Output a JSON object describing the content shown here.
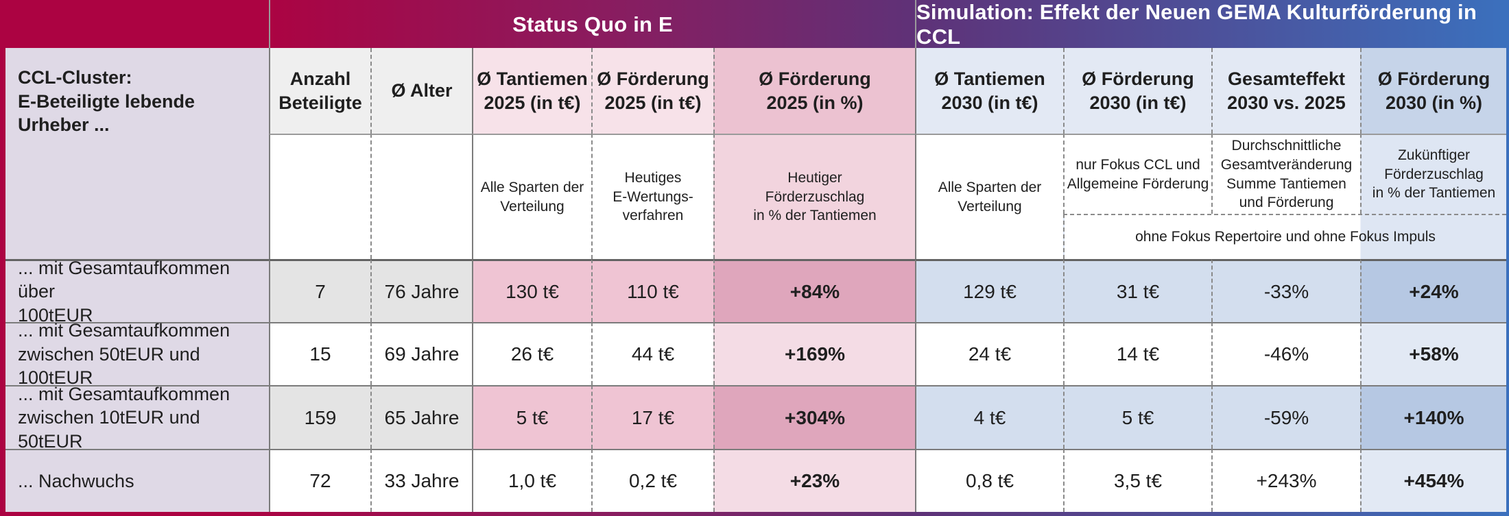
{
  "band": {
    "status_quo_title": "Status Quo in E",
    "simulation_title": "Simulation: Effekt der Neuen GEMA Kulturförderung in CCL"
  },
  "corner_label": "CCL-Cluster:\nE-Beteiligte lebende\nUrheber ...",
  "headers": {
    "anzahl": "Anzahl\nBeteiligte",
    "alter": "Ø Alter",
    "tantiemen_2025": "Ø Tantiemen\n2025 (in t€)",
    "foerderung_2025": "Ø Förderung\n2025 (in t€)",
    "foerderung_2025_pct": "Ø Förderung\n2025 (in %)",
    "tantiemen_2030": "Ø Tantiemen\n2030 (in t€)",
    "foerderung_2030": "Ø Förderung\n2030 (in t€)",
    "gesamteffekt": "Gesamteffekt\n2030 vs. 2025",
    "foerderung_2030_pct": "Ø Förderung\n2030 (in %)"
  },
  "notes": {
    "tantiemen_2025": "Alle Sparten der\nVerteilung",
    "foerderung_2025": "Heutiges\nE-Wertungs-\nverfahren",
    "foerderung_2025_pct": "Heutiger\nFörderzuschlag\nin % der Tantiemen",
    "tantiemen_2030": "Alle Sparten der\nVerteilung",
    "foerderung_2030": "nur Fokus CCL und\nAllgemeine Förderung",
    "gesamteffekt": "Durchschnittliche\nGesamtveränderung\nSumme Tantiemen\nund Förderung",
    "foerderung_2030_pct": "Zukünftiger\nFörderzuschlag\nin % der Tantiemen",
    "ohne_fokus": "ohne Fokus Repertoire und ohne Fokus Impuls"
  },
  "rows": [
    {
      "label": "... mit Gesamtaufkommen über\n100tEUR",
      "anzahl": "7",
      "alter": "76 Jahre",
      "tantiemen_2025": "130 t€",
      "foerderung_2025": "110 t€",
      "foerderung_2025_pct": "+84%",
      "tantiemen_2030": "129 t€",
      "foerderung_2030": "31 t€",
      "gesamteffekt": "-33%",
      "foerderung_2030_pct": "+24%"
    },
    {
      "label": "... mit Gesamtaufkommen\nzwischen 50tEUR und 100tEUR",
      "anzahl": "15",
      "alter": "69 Jahre",
      "tantiemen_2025": "26 t€",
      "foerderung_2025": "44 t€",
      "foerderung_2025_pct": "+169%",
      "tantiemen_2030": "24 t€",
      "foerderung_2030": "14 t€",
      "gesamteffekt": "-46%",
      "foerderung_2030_pct": "+58%"
    },
    {
      "label": "... mit Gesamtaufkommen\nzwischen 10tEUR und 50tEUR",
      "anzahl": "159",
      "alter": "65 Jahre",
      "tantiemen_2025": "5 t€",
      "foerderung_2025": "17 t€",
      "foerderung_2025_pct": "+304%",
      "tantiemen_2030": "4 t€",
      "foerderung_2030": "5 t€",
      "gesamteffekt": "-59%",
      "foerderung_2030_pct": "+140%"
    },
    {
      "label": "... Nachwuchs",
      "anzahl": "72",
      "alter": "33 Jahre",
      "tantiemen_2025": "1,0 t€",
      "foerderung_2025": "0,2 t€",
      "foerderung_2025_pct": "+23%",
      "tantiemen_2030": "0,8 t€",
      "foerderung_2030": "3,5 t€",
      "gesamteffekt": "+243%",
      "foerderung_2030_pct": "+454%"
    }
  ],
  "colors": {
    "crimson": "#AC0342",
    "purple": "#5E3278",
    "blue": "#3B70BD",
    "lavender": "#DFD9E6",
    "pink_light": "#F7E2E9",
    "pink_dark": "#DFA6BC",
    "blue_light": "#E3E9F4",
    "blue_dark": "#B6C8E3"
  },
  "chart_data": {
    "type": "table",
    "title": "Status Quo in E vs. Simulation: Effekt der Neuen GEMA Kulturförderung in CCL",
    "section_spans": {
      "status_quo": [
        "Ø Tantiemen 2025 (in t€)",
        "Ø Förderung 2025 (in t€)",
        "Ø Förderung 2025 (in %)"
      ],
      "simulation": [
        "Ø Tantiemen 2030 (in t€)",
        "Ø Förderung 2030 (in t€)",
        "Gesamteffekt 2030 vs. 2025",
        "Ø Förderung 2030 (in %)"
      ]
    },
    "columns": [
      "CCL-Cluster: E-Beteiligte lebende Urheber ...",
      "Anzahl Beteiligte",
      "Ø Alter",
      "Ø Tantiemen 2025 (in t€)",
      "Ø Förderung 2025 (in t€)",
      "Ø Förderung 2025 (in %)",
      "Ø Tantiemen 2030 (in t€)",
      "Ø Förderung 2030 (in t€)",
      "Gesamteffekt 2030 vs. 2025",
      "Ø Förderung 2030 (in %)"
    ],
    "column_notes": [
      "",
      "",
      "",
      "Alle Sparten der Verteilung",
      "Heutiges E-Wertungsverfahren",
      "Heutiger Förderzuschlag in % der Tantiemen",
      "Alle Sparten der Verteilung",
      "nur Fokus CCL und Allgemeine Förderung / ohne Fokus Repertoire und ohne Fokus Impuls",
      "Durchschnittliche Gesamtveränderung Summe Tantiemen und Förderung / ohne Fokus Repertoire und ohne Fokus Impuls",
      "Zukünftiger Förderzuschlag in % der Tantiemen / ohne Fokus Repertoire und ohne Fokus Impuls"
    ],
    "rows": [
      [
        "... mit Gesamtaufkommen über 100tEUR",
        7,
        "76 Jahre",
        "130 t€",
        "110 t€",
        "+84%",
        "129 t€",
        "31 t€",
        "-33%",
        "+24%"
      ],
      [
        "... mit Gesamtaufkommen zwischen 50tEUR und 100tEUR",
        15,
        "69 Jahre",
        "26 t€",
        "44 t€",
        "+169%",
        "24 t€",
        "14 t€",
        "-46%",
        "+58%"
      ],
      [
        "... mit Gesamtaufkommen zwischen 10tEUR und 50tEUR",
        159,
        "65 Jahre",
        "5 t€",
        "17 t€",
        "+304%",
        "4 t€",
        "5 t€",
        "-59%",
        "+140%"
      ],
      [
        "... Nachwuchs",
        72,
        "33 Jahre",
        "1,0 t€",
        "0,2 t€",
        "+23%",
        "0,8 t€",
        "3,5 t€",
        "+243%",
        "+454%"
      ]
    ]
  }
}
